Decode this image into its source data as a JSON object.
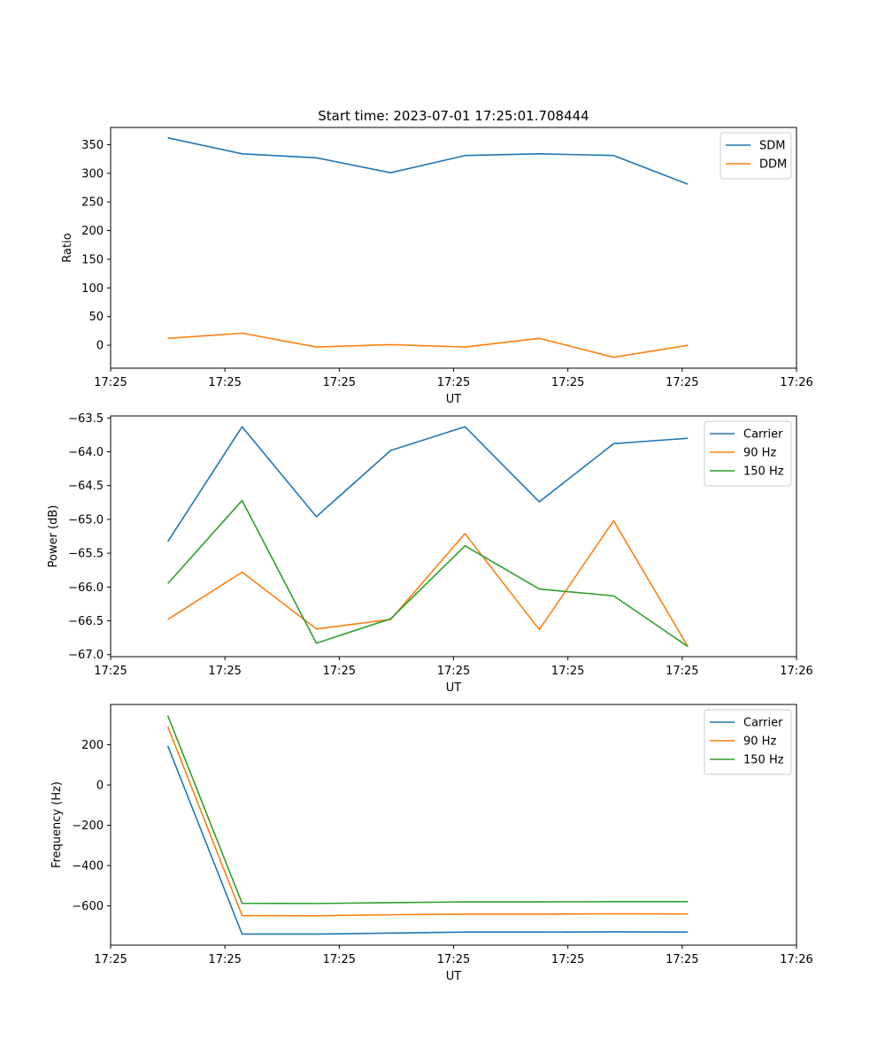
{
  "figure": {
    "title": "Start time: 2023-07-01 17:25:01.708444"
  },
  "chart_data": [
    {
      "type": "line",
      "title": "Start time: 2023-07-01 17:25:01.708444",
      "xlabel": "UT",
      "ylabel": "Ratio",
      "x": [
        0.5,
        1.15,
        1.8,
        2.45,
        3.1,
        3.75,
        4.4,
        5.05
      ],
      "xlim": [
        0,
        6
      ],
      "x_ticks": [
        0,
        1,
        2,
        3,
        4,
        5,
        6
      ],
      "x_tick_labels": [
        "17:25",
        "17:25",
        "17:25",
        "17:25",
        "17:25",
        "17:25",
        "17:26"
      ],
      "ylim": [
        -40,
        380
      ],
      "y_ticks": [
        0,
        50,
        100,
        150,
        200,
        250,
        300,
        350
      ],
      "y_tick_labels": [
        "0",
        "50",
        "100",
        "150",
        "200",
        "250",
        "300",
        "350"
      ],
      "legend_position": "top-right",
      "series": [
        {
          "name": "SDM",
          "color": "#1f77b4",
          "values": [
            362,
            334,
            327,
            301,
            331,
            334,
            331,
            281
          ]
        },
        {
          "name": "DDM",
          "color": "#ff7f0e",
          "values": [
            12,
            21,
            -3,
            1,
            -3,
            12,
            -21,
            0
          ]
        }
      ]
    },
    {
      "type": "line",
      "xlabel": "UT",
      "ylabel": "Power (dB)",
      "x": [
        0.5,
        1.15,
        1.8,
        2.45,
        3.1,
        3.75,
        4.4,
        5.05
      ],
      "xlim": [
        0,
        6
      ],
      "x_ticks": [
        0,
        1,
        2,
        3,
        4,
        5,
        6
      ],
      "x_tick_labels": [
        "17:25",
        "17:25",
        "17:25",
        "17:25",
        "17:25",
        "17:25",
        "17:26"
      ],
      "ylim": [
        -67.03,
        -63.47
      ],
      "y_ticks": [
        -67.0,
        -66.5,
        -66.0,
        -65.5,
        -65.0,
        -64.5,
        -64.0,
        -63.5
      ],
      "y_tick_labels": [
        "−67.0",
        "−66.5",
        "−66.0",
        "−65.5",
        "−65.0",
        "−64.5",
        "−64.0",
        "−63.5"
      ],
      "legend_position": "top-right",
      "series": [
        {
          "name": "Carrier",
          "color": "#1f77b4",
          "values": [
            -65.33,
            -63.63,
            -64.96,
            -63.98,
            -63.63,
            -64.74,
            -63.88,
            -63.8
          ]
        },
        {
          "name": "90 Hz",
          "color": "#ff7f0e",
          "values": [
            -66.48,
            -65.78,
            -66.62,
            -66.48,
            -65.21,
            -66.63,
            -65.02,
            -66.88
          ]
        },
        {
          "name": "150 Hz",
          "color": "#2ca02c",
          "values": [
            -65.95,
            -64.72,
            -66.83,
            -66.47,
            -65.39,
            -66.03,
            -66.13,
            -66.88
          ]
        }
      ]
    },
    {
      "type": "line",
      "xlabel": "UT",
      "ylabel": "Frequency (Hz)",
      "x": [
        0.5,
        1.15,
        1.8,
        2.45,
        3.1,
        3.75,
        4.4,
        5.05
      ],
      "xlim": [
        0,
        6
      ],
      "x_ticks": [
        0,
        1,
        2,
        3,
        4,
        5,
        6
      ],
      "x_tick_labels": [
        "17:25",
        "17:25",
        "17:25",
        "17:25",
        "17:25",
        "17:25",
        "17:26"
      ],
      "ylim": [
        -795,
        400
      ],
      "y_ticks": [
        -600,
        -400,
        -200,
        0,
        200
      ],
      "y_tick_labels": [
        "−600",
        "−400",
        "−200",
        "0",
        "200"
      ],
      "legend_position": "top-right",
      "series": [
        {
          "name": "Carrier",
          "color": "#1f77b4",
          "values": [
            195,
            -740,
            -740,
            -735,
            -730,
            -730,
            -729,
            -730
          ]
        },
        {
          "name": "90 Hz",
          "color": "#ff7f0e",
          "values": [
            290,
            -648,
            -649,
            -644,
            -641,
            -641,
            -639,
            -640
          ]
        },
        {
          "name": "150 Hz",
          "color": "#2ca02c",
          "values": [
            345,
            -587,
            -588,
            -584,
            -580,
            -580,
            -579,
            -579
          ]
        }
      ]
    }
  ]
}
